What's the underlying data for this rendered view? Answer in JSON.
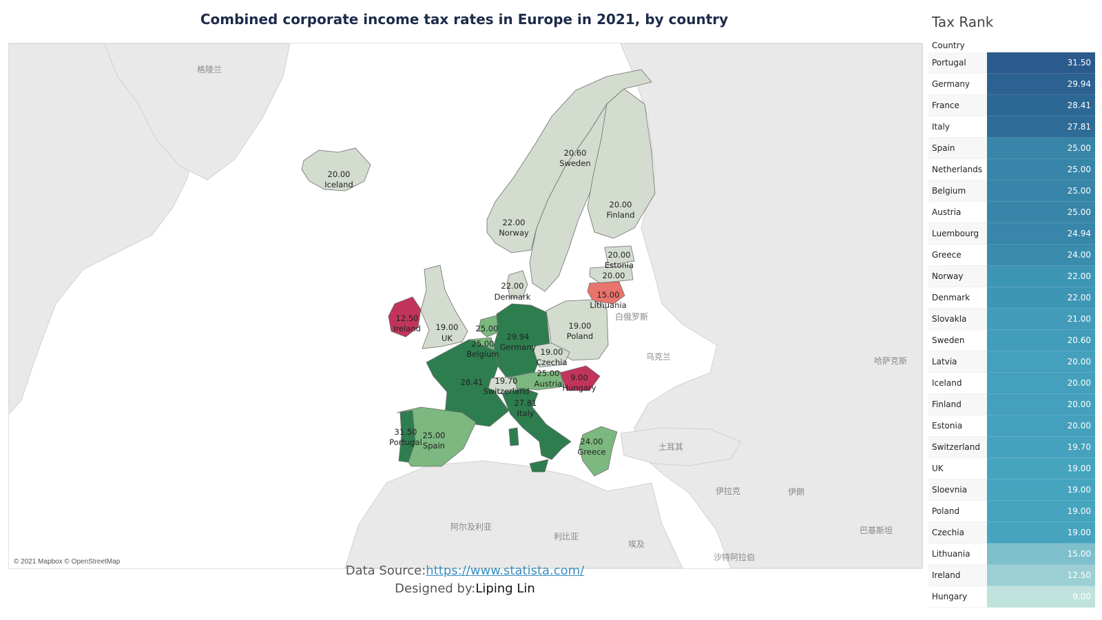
{
  "title": "Combined corporate income tax rates in Europe in 2021, by country",
  "map": {
    "credit": "© 2021 Mapbox © OpenStreetMap",
    "background_labels": [
      "格陵兰",
      "白俄罗斯",
      "乌克兰",
      "哈萨克斯",
      "土耳其",
      "伊拉克",
      "伊朗",
      "巴基斯坦",
      "阿尔及利亚",
      "利比亚",
      "埃及",
      "沙特阿拉伯"
    ],
    "regions": [
      {
        "country": "Iceland",
        "value": "20.00"
      },
      {
        "country": "Sweden",
        "value": "20.60"
      },
      {
        "country": "Finland",
        "value": "20.00"
      },
      {
        "country": "Norway",
        "value": "22.00"
      },
      {
        "country": "Estonia",
        "value": "20.00"
      },
      {
        "country": "Latvia",
        "value": "20.00"
      },
      {
        "country": "Lithuania",
        "value": "15.00"
      },
      {
        "country": "Denmark",
        "value": "22.00"
      },
      {
        "country": "Ireland",
        "value": "12.50"
      },
      {
        "country": "UK",
        "value": "19.00"
      },
      {
        "country": "Netherlands",
        "value": "25.00"
      },
      {
        "country": "Belgium",
        "value": "25.00"
      },
      {
        "country": "Germany",
        "value": "29.94"
      },
      {
        "country": "Poland",
        "value": "19.00"
      },
      {
        "country": "Czechia",
        "value": "19.00"
      },
      {
        "country": "Austria",
        "value": "25.00"
      },
      {
        "country": "Hungary",
        "value": "9.00"
      },
      {
        "country": "France",
        "value": "28.41"
      },
      {
        "country": "Switzerland",
        "value": "19.70"
      },
      {
        "country": "Italy",
        "value": "27.81"
      },
      {
        "country": "Portugal",
        "value": "31.50"
      },
      {
        "country": "Spain",
        "value": "25.00"
      },
      {
        "country": "Greece",
        "value": "24.00"
      }
    ],
    "colors": {
      "high": "#2e7d4f",
      "mid": "#7cb87f",
      "neutral": "#d3dccf",
      "low": "#e8746c",
      "lowest": "#c2345b"
    }
  },
  "footer": {
    "source_label": "Data Source:",
    "source_url": "https://www.statista.com/",
    "designer_label": "Designed by:",
    "designer_name": "Liping Lin"
  },
  "rank": {
    "title": "Tax Rank",
    "column_header": "Country",
    "rows": [
      {
        "country": "Portugal",
        "value": "31.50",
        "color": "#2b5a8c"
      },
      {
        "country": "Germany",
        "value": "29.94",
        "color": "#2c6191"
      },
      {
        "country": "France",
        "value": "28.41",
        "color": "#2d6895"
      },
      {
        "country": "Italy",
        "value": "27.81",
        "color": "#2e6b97"
      },
      {
        "country": "Spain",
        "value": "25.00",
        "color": "#3785a8"
      },
      {
        "country": "Netherlands",
        "value": "25.00",
        "color": "#3785a8"
      },
      {
        "country": "Belgium",
        "value": "25.00",
        "color": "#3785a8"
      },
      {
        "country": "Austria",
        "value": "25.00",
        "color": "#3785a8"
      },
      {
        "country": "Luembourg",
        "value": "24.94",
        "color": "#3886a9"
      },
      {
        "country": "Greece",
        "value": "24.00",
        "color": "#3a8cad"
      },
      {
        "country": "Norway",
        "value": "22.00",
        "color": "#3e96b5"
      },
      {
        "country": "Denmark",
        "value": "22.00",
        "color": "#3e96b5"
      },
      {
        "country": "Slovakla",
        "value": "21.00",
        "color": "#419bb9"
      },
      {
        "country": "Sweden",
        "value": "20.60",
        "color": "#429dba"
      },
      {
        "country": "Latvia",
        "value": "20.00",
        "color": "#44a0bc"
      },
      {
        "country": "Iceland",
        "value": "20.00",
        "color": "#44a0bc"
      },
      {
        "country": "Finland",
        "value": "20.00",
        "color": "#44a0bc"
      },
      {
        "country": "Estonia",
        "value": "20.00",
        "color": "#44a0bc"
      },
      {
        "country": "Switzerland",
        "value": "19.70",
        "color": "#45a1bd"
      },
      {
        "country": "UK",
        "value": "19.00",
        "color": "#47a4bf"
      },
      {
        "country": "Sloevnia",
        "value": "19.00",
        "color": "#47a4bf"
      },
      {
        "country": "Poland",
        "value": "19.00",
        "color": "#47a4bf"
      },
      {
        "country": "Czechia",
        "value": "19.00",
        "color": "#47a4bf"
      },
      {
        "country": "Lithuania",
        "value": "15.00",
        "color": "#7ebfcb"
      },
      {
        "country": "Ireland",
        "value": "12.50",
        "color": "#9bcfd3"
      },
      {
        "country": "Hungary",
        "value": "9.00",
        "color": "#bfe3dc"
      }
    ]
  }
}
